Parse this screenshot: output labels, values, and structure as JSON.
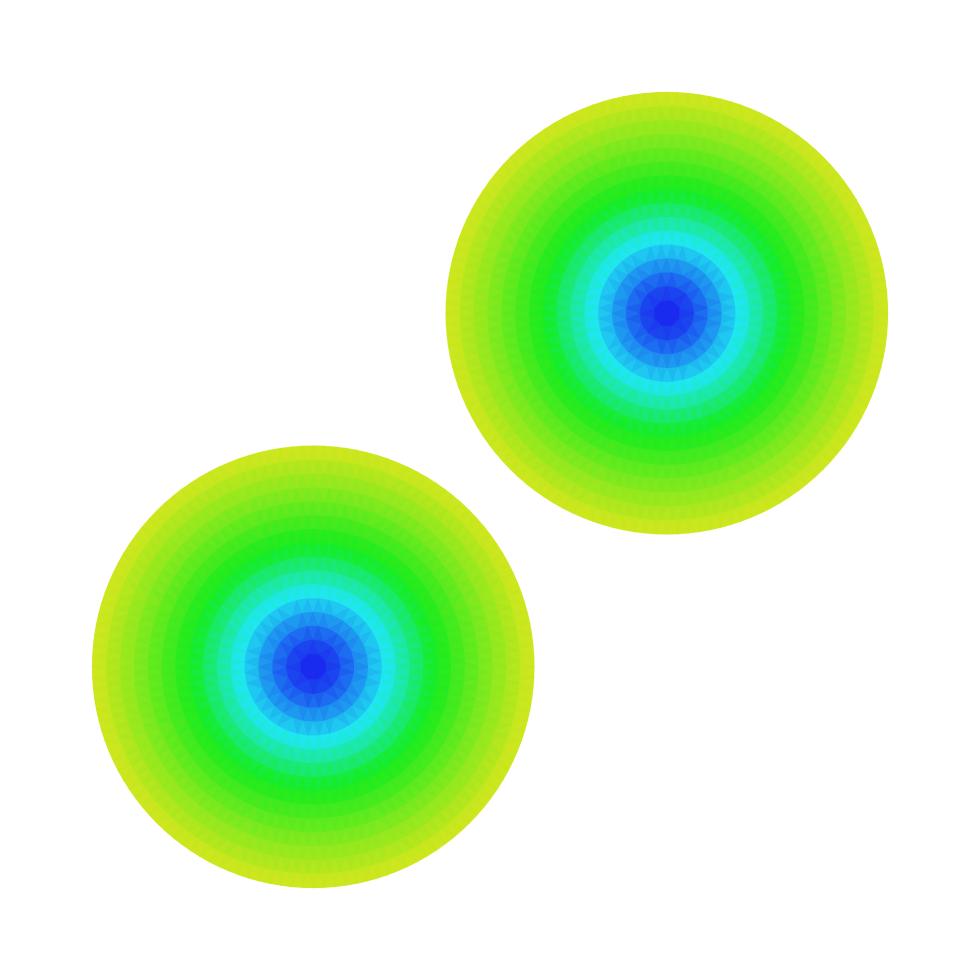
{
  "chart_data": {
    "type": "heatmap",
    "title": "",
    "xlabel": "",
    "ylabel": "",
    "grid": false,
    "legend": "none",
    "colormap": [
      "#1a1aef",
      "#1fe6f0",
      "#16ec1e",
      "#d6e61e"
    ],
    "radial_profile": {
      "r": [
        0.0,
        0.12,
        0.33,
        0.55,
        0.8,
        1.0
      ],
      "level": [
        0.0,
        0.08,
        0.33,
        0.66,
        0.86,
        1.0
      ]
    },
    "regions": [
      {
        "shape": "disk",
        "center": [
          0.7,
          0.7
        ],
        "radius": 0.25
      },
      {
        "shape": "disk",
        "center": [
          0.3,
          0.3
        ],
        "radius": 0.25
      }
    ],
    "xlim": [
      0,
      1
    ],
    "ylim": [
      0,
      1
    ]
  }
}
